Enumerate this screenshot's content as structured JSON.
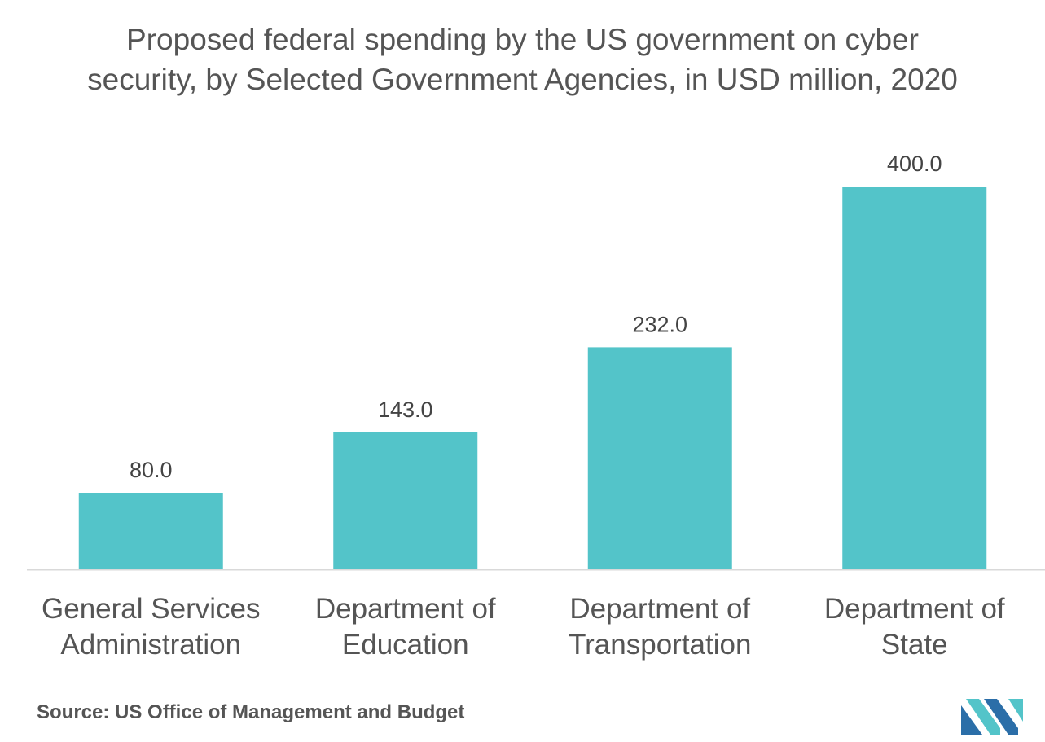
{
  "chart_data": {
    "type": "bar",
    "title_lines": [
      "Proposed federal spending by the US government on cyber",
      "security, by Selected Government Agencies, in USD million, 2020"
    ],
    "categories": [
      [
        "General Services",
        "Administration"
      ],
      [
        "Department of",
        "Education"
      ],
      [
        "Department of",
        "Transportation"
      ],
      [
        "Department of",
        "State"
      ]
    ],
    "values": [
      80.0,
      143.0,
      232.0,
      400.0
    ],
    "value_labels": [
      "80.0",
      "143.0",
      "232.0",
      "400.0"
    ],
    "ylim": [
      0,
      400
    ],
    "grid": false,
    "bar_color": "#53c4c9",
    "axis_color": "#d9d9d9"
  },
  "footer": {
    "source": "Source: US Office of Management and Budget"
  },
  "logo": {
    "icon": "mordor-intelligence-logo",
    "colors": [
      "#2b6ea8",
      "#53c4c9"
    ]
  }
}
